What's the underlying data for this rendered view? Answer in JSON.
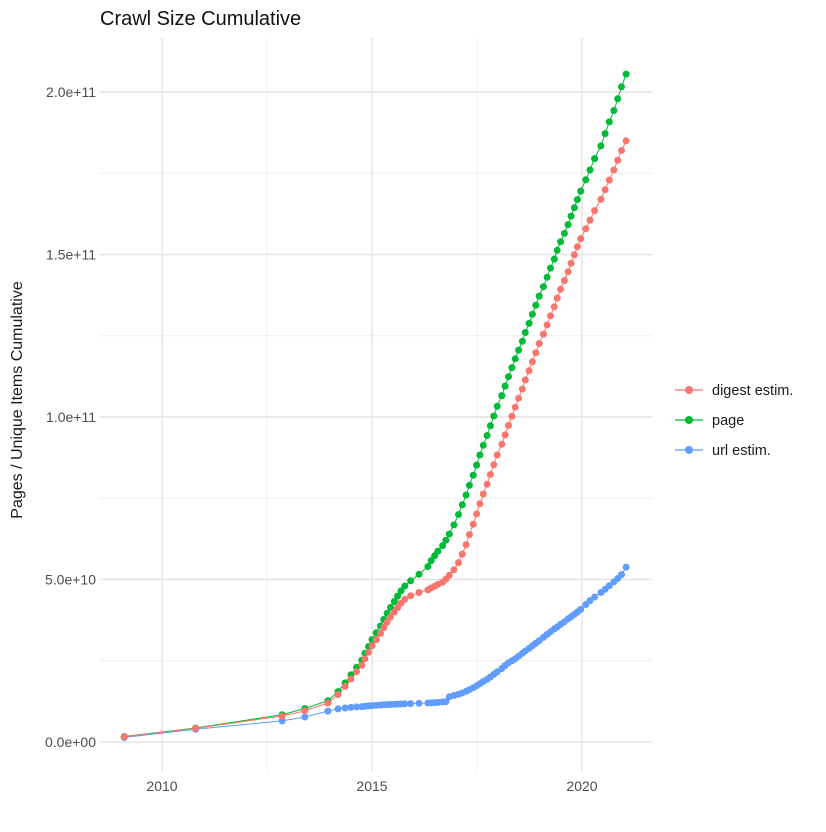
{
  "title": "Crawl Size Cumulative",
  "axes": {
    "y_label": "Pages / Unique Items Cumulative",
    "y_ticks": [
      {
        "label": "0.0e+00",
        "value_billions": 0
      },
      {
        "label": "5.0e+10",
        "value_billions": 50
      },
      {
        "label": "1.0e+11",
        "value_billions": 100
      },
      {
        "label": "1.5e+11",
        "value_billions": 150
      },
      {
        "label": "2.0e+11",
        "value_billions": 200
      }
    ],
    "x_ticks": [
      {
        "label": "2010",
        "value": 2010
      },
      {
        "label": "2015",
        "value": 2015
      },
      {
        "label": "2020",
        "value": 2020
      }
    ]
  },
  "legend": {
    "items": [
      {
        "label": "digest estim.",
        "color": "#F8766D"
      },
      {
        "label": "page",
        "color": "#00BA38"
      },
      {
        "label": "url estim.",
        "color": "#619CFF"
      }
    ]
  },
  "colors": {
    "grid_major": "#e3e3e3",
    "grid_minor": "#efefef",
    "background": "#ffffff"
  },
  "chart_data": {
    "type": "scatter",
    "title": "Crawl Size Cumulative",
    "xlabel": "",
    "ylabel": "Pages / Unique Items Cumulative",
    "grid": true,
    "legend_position": "right",
    "xlim": [
      2008.5,
      2021.7
    ],
    "ylim_billions": [
      -10,
      218
    ],
    "x_years": [
      2009.1,
      2010.8,
      2012.86,
      2013.4,
      2013.95,
      2014.19,
      2014.36,
      2014.5,
      2014.63,
      2014.76,
      2014.83,
      2014.92,
      2015.0,
      2015.1,
      2015.2,
      2015.28,
      2015.36,
      2015.44,
      2015.53,
      2015.61,
      2015.69,
      2015.78,
      2015.92,
      2016.12,
      2016.33,
      2016.41,
      2016.49,
      2016.57,
      2016.68,
      2016.76,
      2016.84,
      2016.95,
      2017.06,
      2017.15,
      2017.24,
      2017.32,
      2017.41,
      2017.49,
      2017.57,
      2017.65,
      2017.74,
      2017.82,
      2017.9,
      2017.98,
      2018.09,
      2018.17,
      2018.25,
      2018.33,
      2018.41,
      2018.49,
      2018.58,
      2018.65,
      2018.74,
      2018.82,
      2018.9,
      2018.98,
      2019.08,
      2019.17,
      2019.25,
      2019.34,
      2019.41,
      2019.49,
      2019.58,
      2019.67,
      2019.74,
      2019.82,
      2019.89,
      2019.97,
      2020.09,
      2020.19,
      2020.3,
      2020.45,
      2020.55,
      2020.65,
      2020.76,
      2020.85,
      2020.94,
      2021.05
    ],
    "series": [
      {
        "name": "digest estim.",
        "color": "#F8766D",
        "values_billions": [
          1.6,
          4.2,
          8.0,
          9.6,
          12.0,
          14.6,
          17.1,
          19.4,
          21.6,
          23.6,
          25.6,
          27.6,
          29.6,
          31.5,
          33.4,
          35.2,
          36.9,
          38.5,
          40.0,
          41.4,
          42.7,
          43.9,
          45.0,
          46.0,
          46.8,
          47.4,
          47.9,
          48.5,
          49.2,
          50.1,
          51.3,
          53.0,
          55.2,
          57.8,
          60.7,
          63.8,
          67.0,
          70.2,
          73.3,
          76.3,
          79.3,
          82.3,
          85.3,
          88.3,
          91.6,
          94.5,
          97.4,
          100.2,
          103.0,
          105.8,
          108.6,
          111.4,
          114.2,
          117.0,
          119.8,
          122.6,
          125.5,
          128.3,
          131.1,
          133.9,
          136.6,
          139.3,
          142.0,
          144.7,
          147.3,
          149.9,
          152.4,
          154.9,
          157.9,
          160.6,
          163.5,
          167.0,
          169.9,
          172.9,
          176.0,
          179.0,
          182.0,
          185.0
        ]
      },
      {
        "name": "page",
        "color": "#00BA38",
        "values_billions": [
          1.7,
          4.3,
          8.4,
          10.3,
          12.7,
          15.5,
          18.2,
          20.7,
          23.0,
          25.2,
          27.3,
          29.4,
          31.5,
          33.6,
          35.7,
          37.7,
          39.6,
          41.4,
          43.2,
          44.9,
          46.5,
          48.0,
          49.6,
          51.6,
          54.0,
          55.8,
          57.3,
          58.7,
          60.4,
          62.1,
          64.0,
          66.8,
          70.0,
          73.0,
          76.0,
          79.0,
          82.1,
          85.2,
          88.3,
          91.3,
          94.3,
          97.3,
          100.3,
          103.3,
          106.6,
          109.5,
          112.4,
          115.2,
          117.9,
          120.6,
          123.3,
          126.0,
          128.8,
          131.6,
          134.4,
          137.2,
          140.1,
          143.0,
          145.8,
          148.6,
          151.3,
          153.9,
          156.5,
          159.2,
          161.8,
          164.4,
          166.9,
          169.5,
          173.0,
          176.0,
          179.5,
          183.4,
          187.2,
          190.8,
          194.3,
          197.9,
          201.6,
          205.5
        ]
      },
      {
        "name": "url estim.",
        "color": "#619CFF",
        "values_billions": [
          1.4,
          3.9,
          6.5,
          7.7,
          9.5,
          10.2,
          10.45,
          10.65,
          10.8,
          10.9,
          11.0,
          11.1,
          11.2,
          11.3,
          11.4,
          11.45,
          11.5,
          11.55,
          11.6,
          11.65,
          11.7,
          11.75,
          11.8,
          11.9,
          12.0,
          12.05,
          12.1,
          12.2,
          12.3,
          12.4,
          13.9,
          14.3,
          14.7,
          15.1,
          15.6,
          16.1,
          16.7,
          17.3,
          17.9,
          18.6,
          19.3,
          20.0,
          20.8,
          21.6,
          22.6,
          23.5,
          24.4,
          25.0,
          25.6,
          26.4,
          27.3,
          28.0,
          28.8,
          29.6,
          30.4,
          31.2,
          32.2,
          33.1,
          33.9,
          34.8,
          35.4,
          36.2,
          37.0,
          37.9,
          38.5,
          39.3,
          40.0,
          40.8,
          42.3,
          43.5,
          44.6,
          46.0,
          47.0,
          48.1,
          49.3,
          50.3,
          51.5,
          53.8
        ]
      }
    ]
  }
}
